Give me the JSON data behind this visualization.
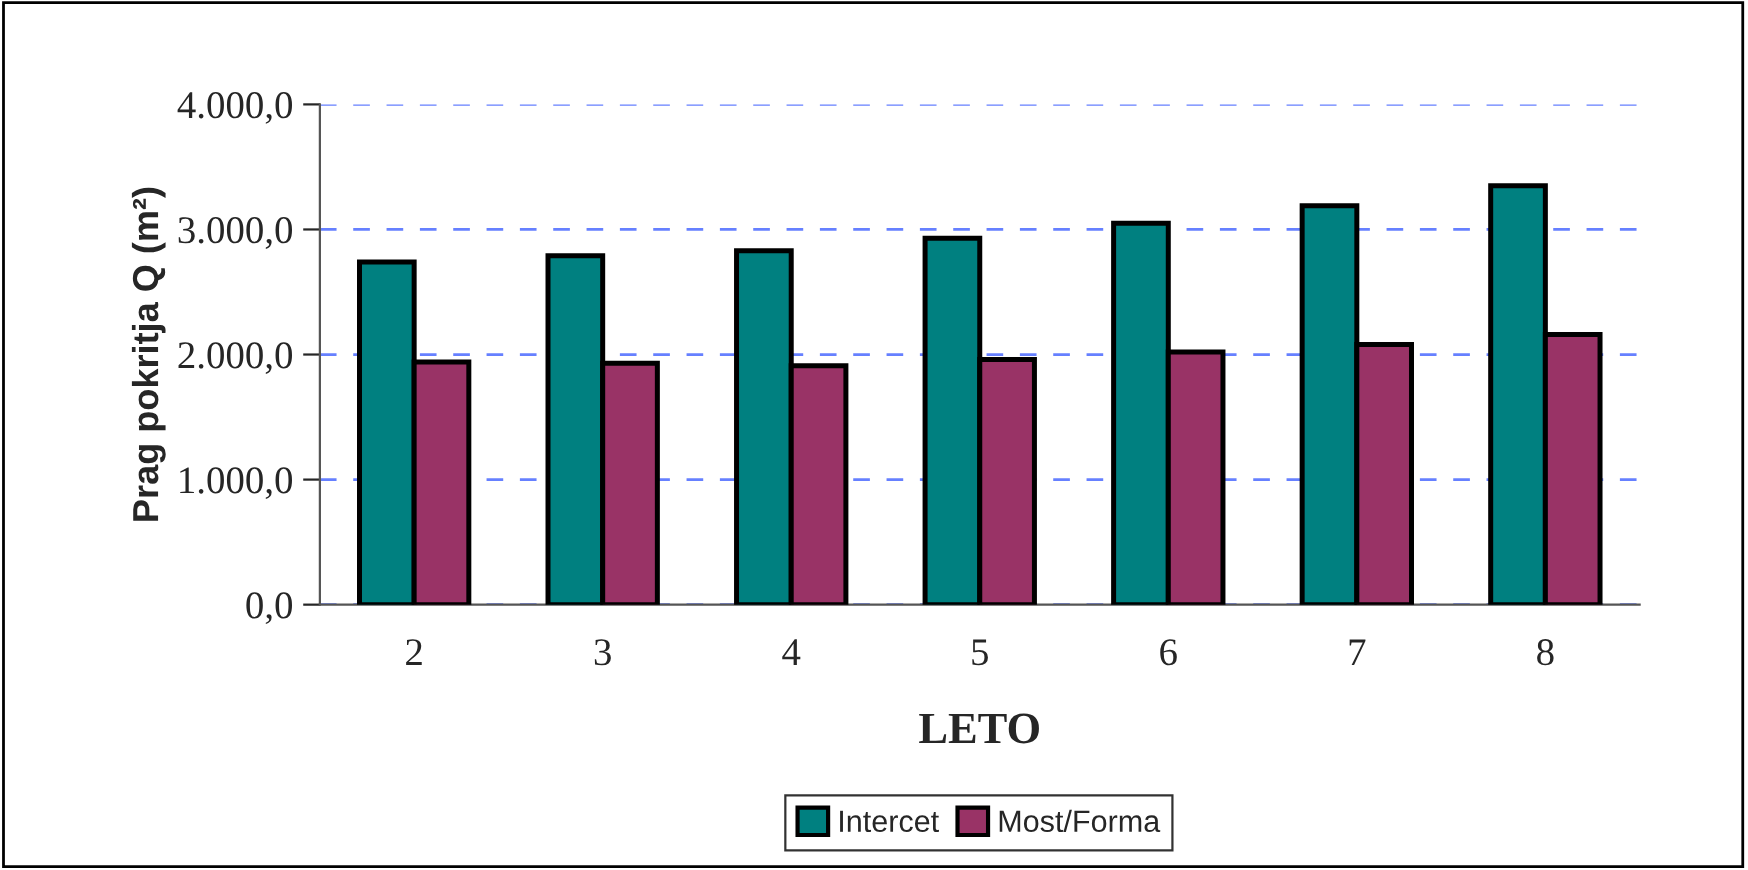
{
  "chart_data": {
    "type": "bar",
    "xlabel": "LETO",
    "ylabel": "Prag pokritja Q (m²)",
    "categories": [
      "2",
      "3",
      "4",
      "5",
      "6",
      "7",
      "8"
    ],
    "series": [
      {
        "name": "Intercet",
        "color": "#008080",
        "values": [
          2740,
          2790,
          2830,
          2930,
          3050,
          3190,
          3350
        ]
      },
      {
        "name": "Most/Forma",
        "color": "#993366",
        "values": [
          1940,
          1930,
          1910,
          1960,
          2020,
          2080,
          2160
        ]
      }
    ],
    "ylim": [
      0,
      4000
    ],
    "yticks": [
      {
        "value": 0,
        "label": "0,0"
      },
      {
        "value": 1000,
        "label": "1.000,0"
      },
      {
        "value": 2000,
        "label": "2.000,0"
      },
      {
        "value": 3000,
        "label": "3.000,0"
      },
      {
        "value": 4000,
        "label": "4.000,0"
      }
    ],
    "grid": "y",
    "legend": "bottom"
  }
}
